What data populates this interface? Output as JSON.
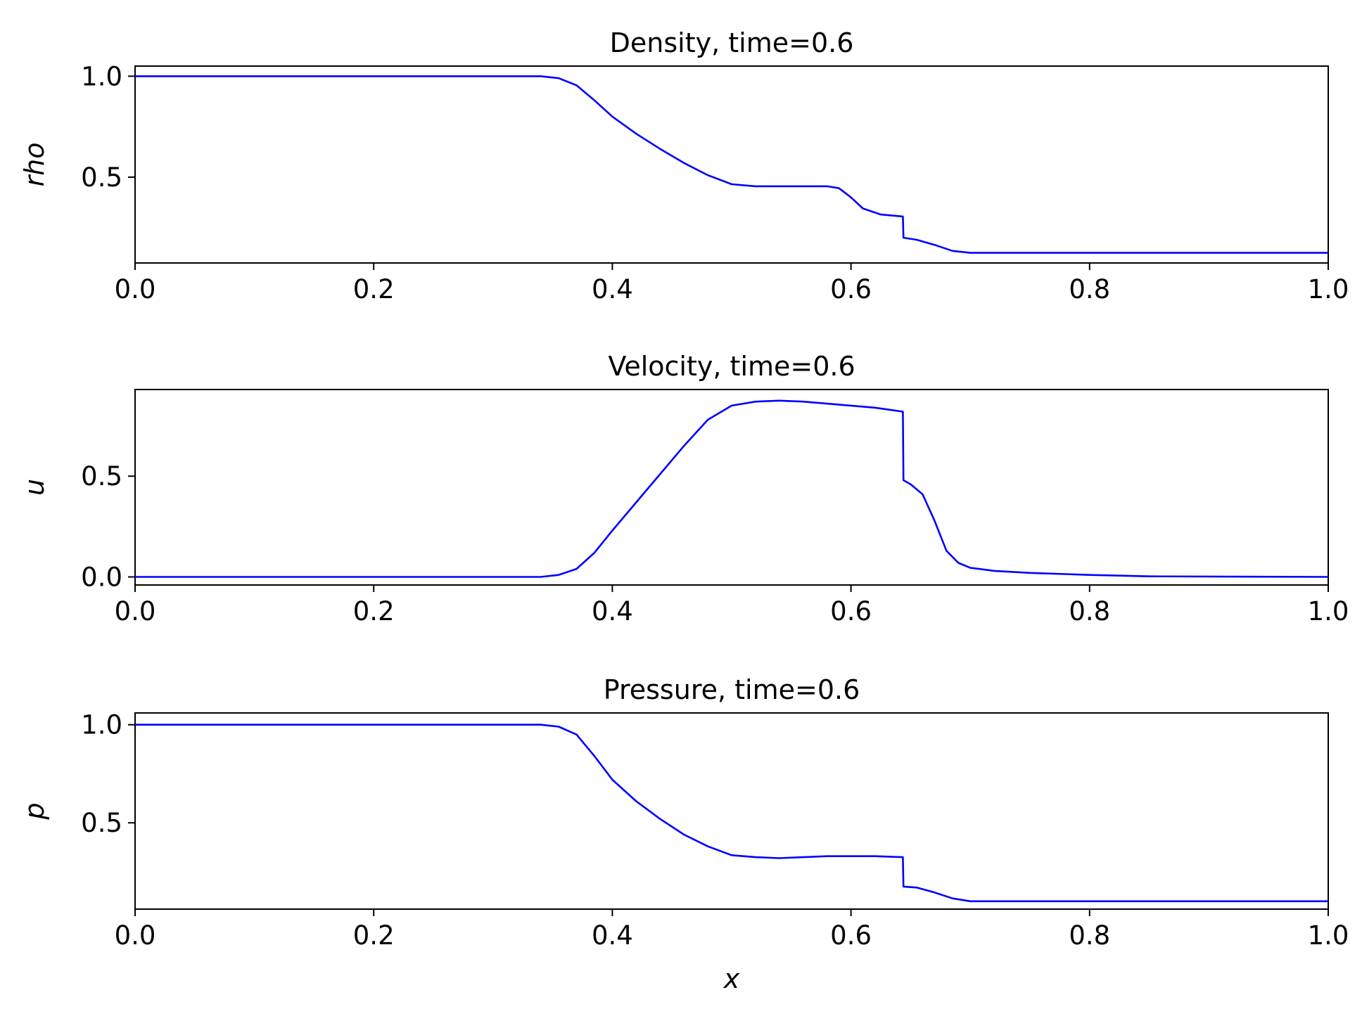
{
  "style": {
    "line_color": "#0000ff"
  },
  "chart_data": [
    {
      "type": "line",
      "title": "Density, time=0.6",
      "xlabel": "",
      "ylabel": "rho",
      "xlim": [
        0.0,
        1.0
      ],
      "ylim": [
        0.075,
        1.05
      ],
      "grid": false,
      "xticks": [
        "0.0",
        "0.2",
        "0.4",
        "0.6",
        "0.8",
        "1.0"
      ],
      "yticks": [
        "0.5",
        "1.0"
      ],
      "series": [
        {
          "x": [
            0.0,
            0.34,
            0.355,
            0.37,
            0.385,
            0.4,
            0.42,
            0.44,
            0.46,
            0.48,
            0.5,
            0.52,
            0.54,
            0.56,
            0.58,
            0.59,
            0.6,
            0.61,
            0.625,
            0.6435,
            0.644,
            0.655,
            0.67,
            0.685,
            0.7,
            0.72,
            0.75,
            1.0
          ],
          "y": [
            1.0,
            1.0,
            0.99,
            0.955,
            0.88,
            0.8,
            0.715,
            0.64,
            0.57,
            0.51,
            0.465,
            0.455,
            0.455,
            0.455,
            0.455,
            0.445,
            0.4,
            0.345,
            0.315,
            0.305,
            0.2,
            0.19,
            0.165,
            0.135,
            0.125,
            0.125,
            0.125,
            0.125
          ]
        }
      ]
    },
    {
      "type": "line",
      "title": "Velocity, time=0.6",
      "xlabel": "",
      "ylabel": "u",
      "xlim": [
        0.0,
        1.0
      ],
      "ylim": [
        -0.04,
        0.93
      ],
      "grid": false,
      "xticks": [
        "0.0",
        "0.2",
        "0.4",
        "0.6",
        "0.8",
        "1.0"
      ],
      "yticks": [
        "0.0",
        "0.5"
      ],
      "series": [
        {
          "x": [
            0.0,
            0.34,
            0.355,
            0.37,
            0.385,
            0.4,
            0.42,
            0.44,
            0.46,
            0.48,
            0.5,
            0.52,
            0.54,
            0.56,
            0.58,
            0.6,
            0.62,
            0.6435,
            0.644,
            0.65,
            0.66,
            0.67,
            0.68,
            0.69,
            0.7,
            0.72,
            0.75,
            0.8,
            0.85,
            1.0
          ],
          "y": [
            0.0,
            0.0,
            0.01,
            0.04,
            0.12,
            0.23,
            0.37,
            0.51,
            0.65,
            0.78,
            0.85,
            0.87,
            0.875,
            0.87,
            0.86,
            0.85,
            0.84,
            0.82,
            0.48,
            0.46,
            0.41,
            0.28,
            0.13,
            0.07,
            0.045,
            0.03,
            0.02,
            0.01,
            0.003,
            0.0
          ]
        }
      ]
    },
    {
      "type": "line",
      "title": "Pressure, time=0.6",
      "xlabel": "x",
      "ylabel": "p",
      "xlim": [
        0.0,
        1.0
      ],
      "ylim": [
        0.06,
        1.06
      ],
      "grid": false,
      "xticks": [
        "0.0",
        "0.2",
        "0.4",
        "0.6",
        "0.8",
        "1.0"
      ],
      "yticks": [
        "0.5",
        "1.0"
      ],
      "series": [
        {
          "x": [
            0.0,
            0.34,
            0.355,
            0.37,
            0.385,
            0.4,
            0.42,
            0.44,
            0.46,
            0.48,
            0.5,
            0.52,
            0.54,
            0.56,
            0.58,
            0.6,
            0.62,
            0.6435,
            0.644,
            0.655,
            0.67,
            0.685,
            0.7,
            0.75,
            1.0
          ],
          "y": [
            1.0,
            1.0,
            0.99,
            0.95,
            0.84,
            0.72,
            0.61,
            0.52,
            0.44,
            0.38,
            0.335,
            0.325,
            0.32,
            0.325,
            0.33,
            0.33,
            0.33,
            0.325,
            0.175,
            0.17,
            0.145,
            0.115,
            0.1,
            0.1,
            0.1
          ]
        }
      ]
    }
  ]
}
